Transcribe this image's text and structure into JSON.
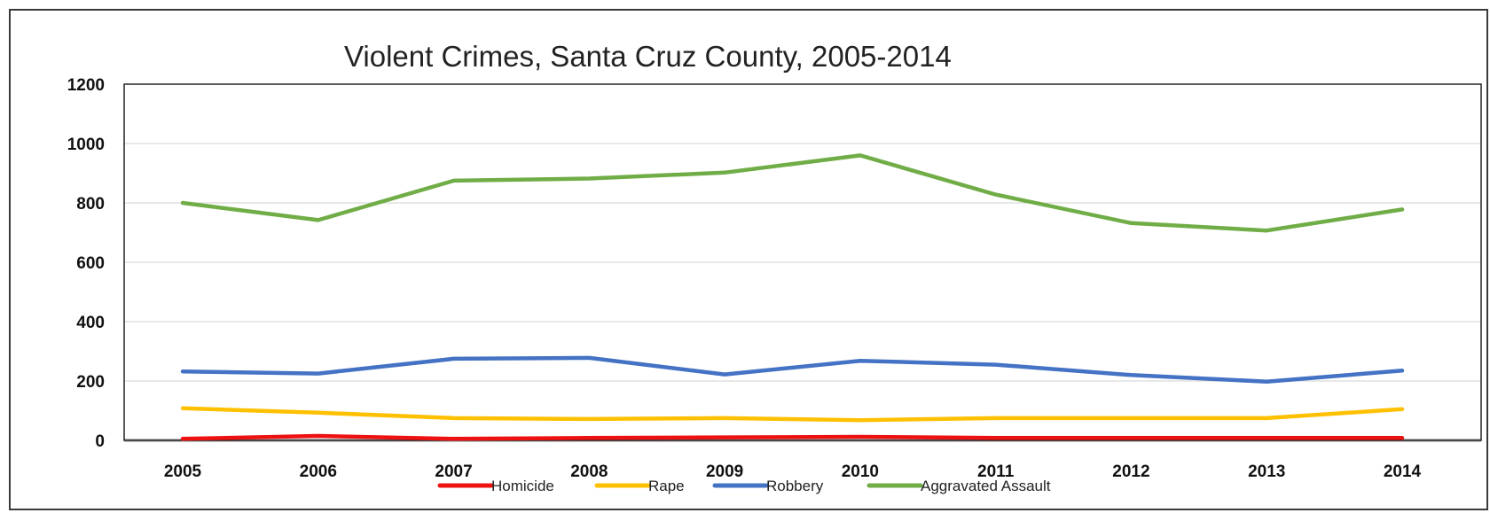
{
  "chart_data": {
    "type": "line",
    "title": "Violent Crimes, Santa Cruz County, 2005-2014",
    "xlabel": "",
    "ylabel": "",
    "categories": [
      "2005",
      "2006",
      "2007",
      "2008",
      "2009",
      "2010",
      "2011",
      "2012",
      "2013",
      "2014"
    ],
    "ylim": [
      0,
      1200
    ],
    "yticks": [
      "0",
      "200",
      "400",
      "600",
      "800",
      "1000",
      "1200"
    ],
    "grid": true,
    "legend_position": "bottom",
    "series": [
      {
        "name": "Homicide",
        "color": "#ee1111",
        "values": [
          5,
          15,
          5,
          8,
          10,
          12,
          8,
          8,
          8,
          8
        ]
      },
      {
        "name": "Rape",
        "color": "#ffc000",
        "values": [
          108,
          93,
          75,
          72,
          75,
          68,
          75,
          75,
          75,
          105
        ]
      },
      {
        "name": "Robbery",
        "color": "#4472c4",
        "values": [
          232,
          225,
          275,
          278,
          222,
          268,
          255,
          220,
          198,
          235
        ]
      },
      {
        "name": "Aggravated Assault",
        "color": "#70ad47",
        "values": [
          800,
          742,
          875,
          882,
          902,
          960,
          828,
          732,
          707,
          778
        ]
      }
    ]
  }
}
